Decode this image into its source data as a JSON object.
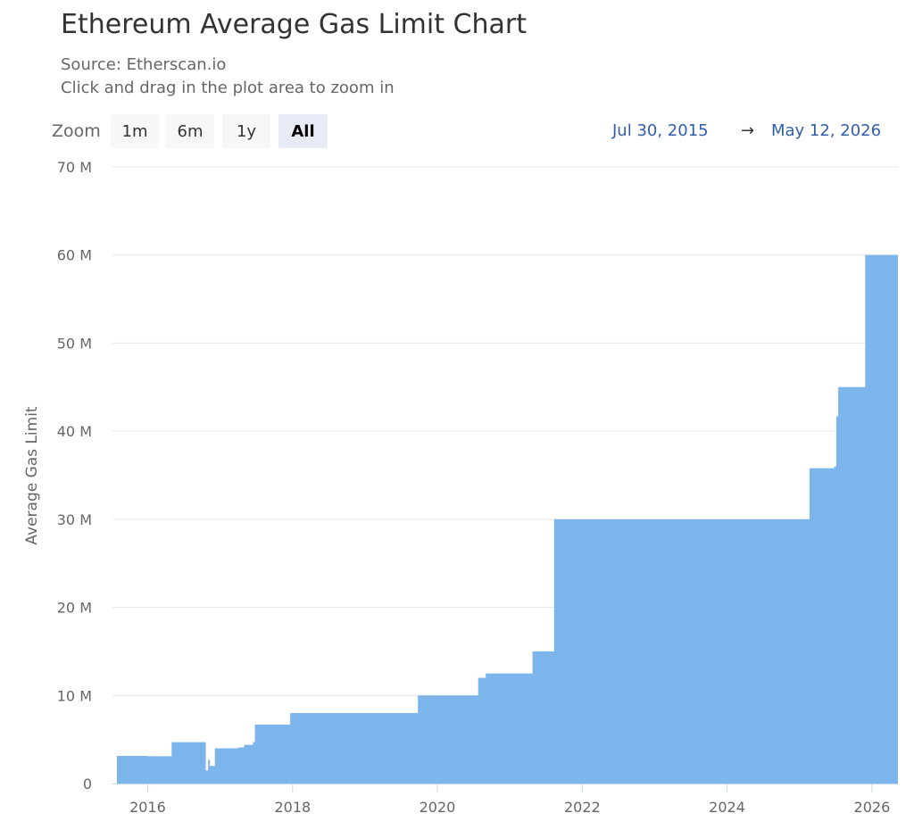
{
  "chart_data": {
    "type": "area",
    "title": "Ethereum Average Gas Limit Chart",
    "subtitle_source": "Source: Etherscan.io",
    "subtitle_hint": "Click and drag in the plot area to zoom in",
    "ylabel": "Average Gas Limit",
    "ylim": [
      0,
      70000000
    ],
    "xlim": [
      "2015-07-30",
      "2026-05-12"
    ],
    "y_ticks": [
      {
        "value": 0,
        "label": "0"
      },
      {
        "value": 10000000,
        "label": "10 M"
      },
      {
        "value": 20000000,
        "label": "20 M"
      },
      {
        "value": 30000000,
        "label": "30 M"
      },
      {
        "value": 40000000,
        "label": "40 M"
      },
      {
        "value": 50000000,
        "label": "50 M"
      },
      {
        "value": 60000000,
        "label": "60 M"
      },
      {
        "value": 70000000,
        "label": "70 M"
      }
    ],
    "x_ticks": [
      {
        "value": "2016-01-01",
        "label": "2016"
      },
      {
        "value": "2018-01-01",
        "label": "2018"
      },
      {
        "value": "2020-01-01",
        "label": "2020"
      },
      {
        "value": "2022-01-01",
        "label": "2022"
      },
      {
        "value": "2024-01-01",
        "label": "2024"
      },
      {
        "value": "2026-01-01",
        "label": "2026"
      }
    ],
    "grid": true,
    "legend": "none",
    "fill_color": "#7cb5ec",
    "series": [
      {
        "points": [
          [
            "2015-07-30",
            3140000
          ],
          [
            "2015-12-20",
            3140000
          ],
          [
            "2016-01-01",
            3100000
          ],
          [
            "2016-05-01",
            4700000
          ],
          [
            "2016-10-18",
            4700000
          ],
          [
            "2016-10-20",
            1500000
          ],
          [
            "2016-11-01",
            2700000
          ],
          [
            "2016-11-10",
            2000000
          ],
          [
            "2016-12-05",
            4000000
          ],
          [
            "2017-04-01",
            4100000
          ],
          [
            "2017-05-01",
            4400000
          ],
          [
            "2017-06-15",
            4700000
          ],
          [
            "2017-06-25",
            6700000
          ],
          [
            "2017-12-10",
            6700000
          ],
          [
            "2017-12-20",
            8000000
          ],
          [
            "2019-09-15",
            8000000
          ],
          [
            "2019-09-25",
            10000000
          ],
          [
            "2020-07-15",
            10000000
          ],
          [
            "2020-07-25",
            12000000
          ],
          [
            "2020-09-01",
            12500000
          ],
          [
            "2021-04-15",
            12500000
          ],
          [
            "2021-04-25",
            15000000
          ],
          [
            "2021-08-05",
            15000000
          ],
          [
            "2021-08-12",
            30000000
          ],
          [
            "2025-02-10",
            30000000
          ],
          [
            "2025-02-20",
            35800000
          ],
          [
            "2025-06-25",
            36000000
          ],
          [
            "2025-07-05",
            41700000
          ],
          [
            "2025-07-15",
            45000000
          ],
          [
            "2025-11-20",
            45000000
          ],
          [
            "2025-11-28",
            60000000
          ],
          [
            "2026-05-12",
            60000000
          ]
        ]
      }
    ]
  },
  "toolbar": {
    "zoom_label": "Zoom",
    "buttons": [
      "1m",
      "6m",
      "1y",
      "All"
    ],
    "selected": "All"
  },
  "range": {
    "from": "Jul 30, 2015",
    "arrow": "→",
    "to": "May 12, 2026"
  }
}
